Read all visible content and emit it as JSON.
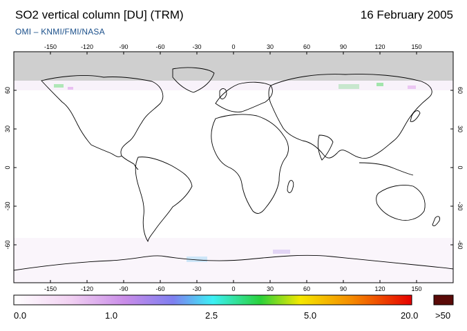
{
  "header": {
    "title": "SO2 vertical column [DU] (TRM)",
    "date": "16 February 2005",
    "credit": "OMI  –  KNMI/FMI/NASA"
  },
  "map": {
    "lon_ticks": [
      "-150",
      "-120",
      "-90",
      "-60",
      "-30",
      "0",
      "30",
      "60",
      "90",
      "120",
      "150"
    ],
    "lat_ticks": [
      "60",
      "30",
      "0",
      "-30",
      "-60"
    ],
    "no_data_color": "#cfcfcf",
    "land_outline_color": "#000000"
  },
  "legend": {
    "labels": [
      "0.0",
      "1.0",
      "2.5",
      "5.0",
      "20.0"
    ],
    "overflow_label": ">50",
    "overflow_color": "#5a0a08",
    "gradient_colors": [
      "#ffffff",
      "#f2d2f2",
      "#c98ce8",
      "#7f7ff0",
      "#3cf0f5",
      "#2ad13a",
      "#f5e800",
      "#f58a00",
      "#e60000"
    ]
  }
}
